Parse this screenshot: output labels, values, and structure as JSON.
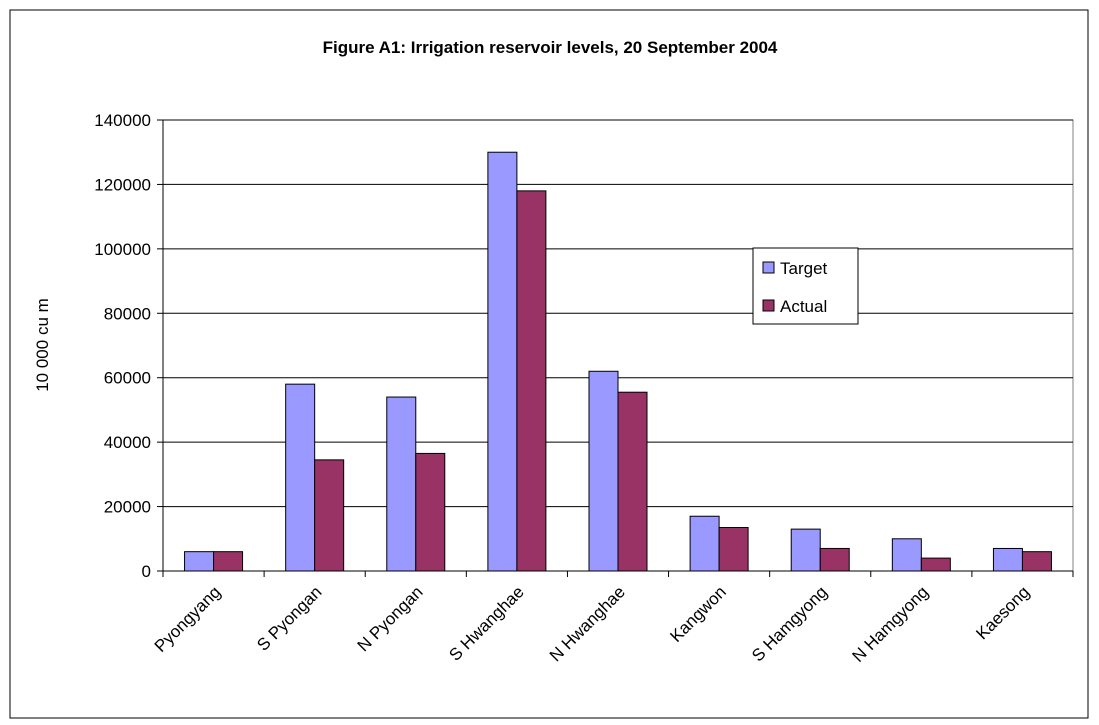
{
  "chart_data": {
    "type": "bar",
    "title": "Figure A1: Irrigation reservoir levels, 20 September 2004",
    "y_label": "10 000 cu m",
    "categories": [
      "Pyongyang",
      "S Pyongan",
      "N Pyongan",
      "S Hwanghae",
      "N Hwanghae",
      "Kangwon",
      "S Hamgyong",
      "N Hamgyong",
      "Kaesong"
    ],
    "series": [
      {
        "name": "Target",
        "color": "#9999ff",
        "values": [
          6000,
          58000,
          54000,
          130000,
          62000,
          17000,
          13000,
          10000,
          7000
        ]
      },
      {
        "name": "Actual",
        "color": "#993366",
        "values": [
          6000,
          34500,
          36500,
          118000,
          55500,
          13500,
          7000,
          4000,
          6000
        ]
      }
    ],
    "ylim": [
      0,
      140000
    ],
    "yticks": [
      0,
      20000,
      40000,
      60000,
      80000,
      100000,
      120000,
      140000
    ],
    "grid": true,
    "legend": "right"
  }
}
